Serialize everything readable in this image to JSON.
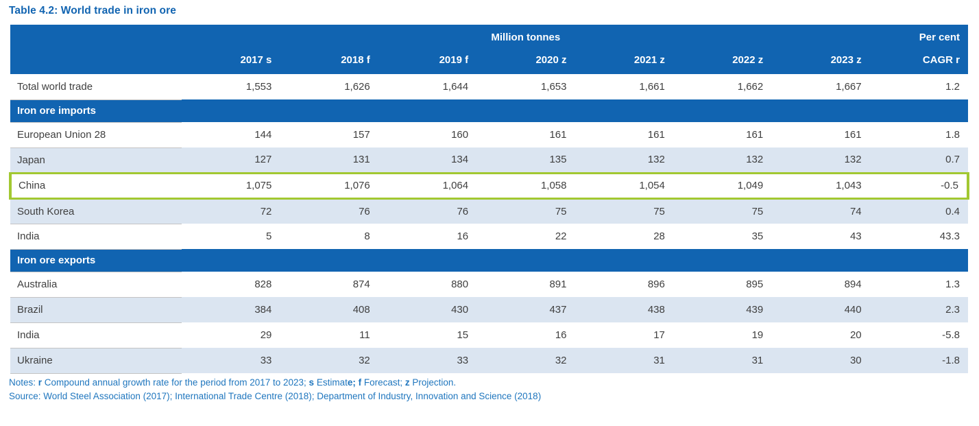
{
  "title": "Table 4.2: World trade in iron ore",
  "table": {
    "unit_header": {
      "million_tonnes": "Million tonnes",
      "per_cent": "Per cent"
    },
    "columns": [
      "2017 s",
      "2018 f",
      "2019 f",
      "2020 z",
      "2021 z",
      "2022 z",
      "2023 z",
      "CAGR r"
    ],
    "total_row": {
      "label": "Total world trade",
      "values": [
        "1,553",
        "1,626",
        "1,644",
        "1,653",
        "1,661",
        "1,662",
        "1,667",
        "1.2"
      ]
    },
    "sections": [
      {
        "heading": "Iron ore imports",
        "rows": [
          {
            "label": "European Union 28",
            "values": [
              "144",
              "157",
              "160",
              "161",
              "161",
              "161",
              "161",
              "1.8"
            ]
          },
          {
            "label": "Japan",
            "values": [
              "127",
              "131",
              "134",
              "135",
              "132",
              "132",
              "132",
              "0.7"
            ]
          },
          {
            "label": "China",
            "highlighted": true,
            "values": [
              "1,075",
              "1,076",
              "1,064",
              "1,058",
              "1,054",
              "1,049",
              "1,043",
              "-0.5"
            ]
          },
          {
            "label": "South Korea",
            "values": [
              "72",
              "76",
              "76",
              "75",
              "75",
              "75",
              "74",
              "0.4"
            ]
          },
          {
            "label": "India",
            "values": [
              "5",
              "8",
              "16",
              "22",
              "28",
              "35",
              "43",
              "43.3"
            ]
          }
        ]
      },
      {
        "heading": "Iron ore exports",
        "rows": [
          {
            "label": "Australia",
            "values": [
              "828",
              "874",
              "880",
              "891",
              "896",
              "895",
              "894",
              "1.3"
            ]
          },
          {
            "label": "Brazil",
            "values": [
              "384",
              "408",
              "430",
              "437",
              "438",
              "439",
              "440",
              "2.3"
            ]
          },
          {
            "label": "India",
            "values": [
              "29",
              "11",
              "15",
              "16",
              "17",
              "19",
              "20",
              "-5.8"
            ]
          },
          {
            "label": "Ukraine",
            "values": [
              "33",
              "32",
              "33",
              "32",
              "31",
              "31",
              "30",
              "-1.8"
            ]
          }
        ]
      }
    ]
  },
  "notes": {
    "segments": [
      {
        "text": "Notes: "
      },
      {
        "text": "r",
        "bold": true
      },
      {
        "text": " Compound annual growth rate for the period from 2017 to 2023; "
      },
      {
        "text": "s",
        "bold": true
      },
      {
        "text": " Estimat"
      },
      {
        "text": "e; f",
        "bold": true
      },
      {
        "text": " Forecast; "
      },
      {
        "text": "z",
        "bold": true
      },
      {
        "text": " Projection."
      }
    ]
  },
  "source": "Source: World Steel Association (2017); International Trade Centre (2018); Department of Industry, Innovation and Science (2018)",
  "colors": {
    "header_blue": "#1164B1",
    "row_shade": "#DBE5F1",
    "highlight_green": "#A2C831",
    "note_blue": "#1F76BE",
    "data_text": "#404040"
  }
}
